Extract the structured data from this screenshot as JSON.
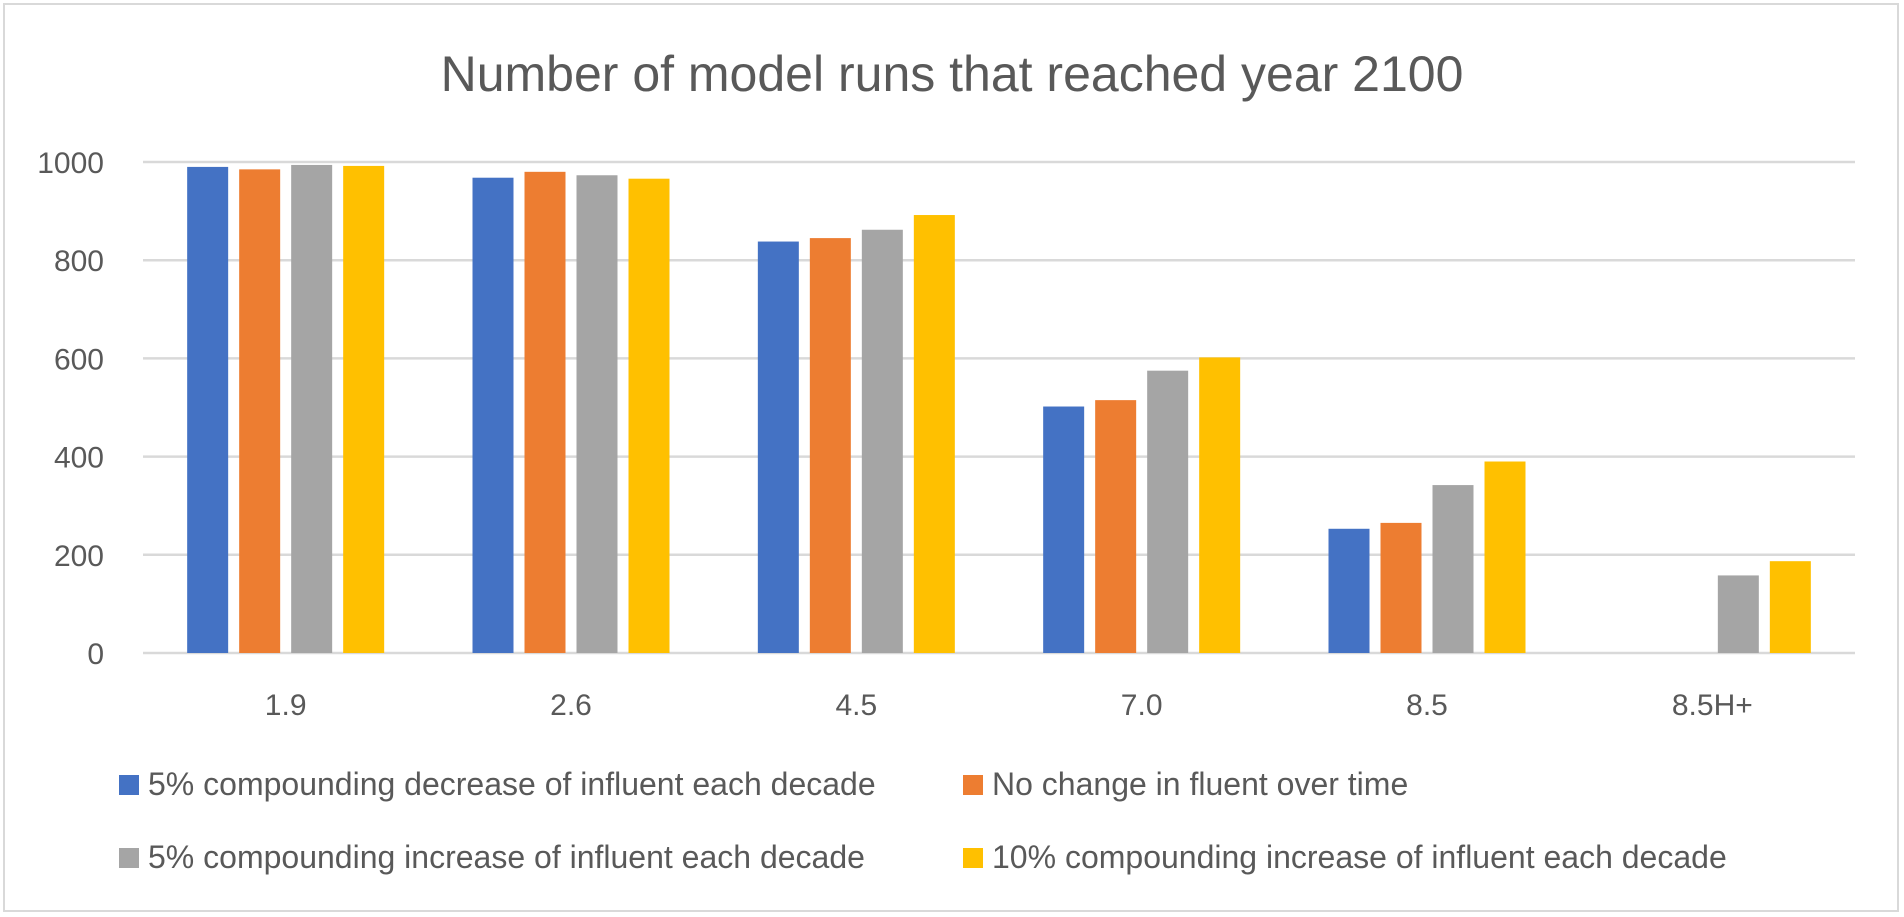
{
  "chart_data": {
    "type": "bar",
    "title": "Number of model runs that reached year 2100",
    "xlabel": "",
    "ylabel": "",
    "ylim": [
      0,
      1000
    ],
    "yticks": [
      "0",
      "200",
      "400",
      "600",
      "800",
      "1000"
    ],
    "categories": [
      "1.9",
      "2.6",
      "4.5",
      "7.0",
      "8.5",
      "8.5H+"
    ],
    "series": [
      {
        "name": "5% compounding decrease of influent each decade",
        "color": "#4472C4",
        "values": [
          990,
          968,
          838,
          502,
          253,
          null
        ]
      },
      {
        "name": "No change in fluent over time",
        "color": "#ED7D31",
        "values": [
          985,
          980,
          845,
          515,
          265,
          null
        ]
      },
      {
        "name": "5% compounding increase of influent each decade",
        "color": "#A5A5A5",
        "values": [
          994,
          973,
          862,
          575,
          342,
          158
        ]
      },
      {
        "name": "10% compounding increase of influent each decade",
        "color": "#FFC000",
        "values": [
          992,
          966,
          892,
          602,
          390,
          187
        ]
      }
    ],
    "grid": true,
    "legend_position": "bottom"
  }
}
